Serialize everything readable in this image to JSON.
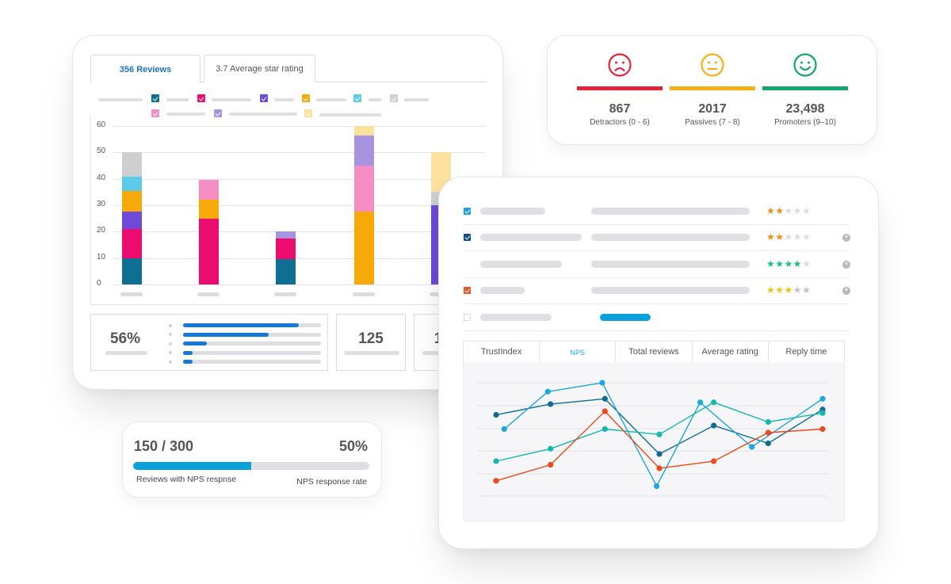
{
  "reviews_card": {
    "tabs": [
      {
        "label": "356 Reviews",
        "active": true
      },
      {
        "label": "3.7 Average star rating",
        "active": false
      }
    ],
    "legend_swatch_colors": [
      "#0e6f92",
      "#ec0b6f",
      "#6f4ad9",
      "#f7a90a",
      "#5ccbea",
      "#cfcfd2",
      "#f38dc2",
      "#a893e0",
      "#fbe19c"
    ],
    "stats": {
      "percent": "56%",
      "distribution_fill_pct": [
        84,
        62,
        17,
        7,
        7
      ],
      "count": "125",
      "partial_value": "1"
    }
  },
  "nps_summary": {
    "items": [
      {
        "icon": "sad-face-icon",
        "value": "867",
        "label": "Detractors (0 - 6)",
        "color": "#e5243b"
      },
      {
        "icon": "neutral-face-icon",
        "value": "2017",
        "label": "Passives (7 - 8)",
        "color": "#f5b015"
      },
      {
        "icon": "happy-face-icon",
        "value": "23,498",
        "label": "Promoters (9–10)",
        "color": "#12a86b"
      }
    ]
  },
  "response_rate": {
    "count": "150 / 300",
    "percent": "50%",
    "fill_pct": 50,
    "count_label": "Reviews with NPS respnse",
    "percent_label": "NPS response rate"
  },
  "review_list": {
    "rows": [
      {
        "checkbox": "checked",
        "checkbox_color": "#1fa3e0",
        "stars": 2,
        "star_color": "#f28a1c",
        "removable": false
      },
      {
        "checkbox": "checked",
        "checkbox_color": "#0f4e86",
        "stars": 2,
        "star_color": "#f28a1c",
        "removable": true
      },
      {
        "checkbox": "none",
        "checkbox_color": "",
        "stars": 4,
        "star_color": "#15c08a",
        "removable": true
      },
      {
        "checkbox": "checked",
        "checkbox_color": "#e4562a",
        "stars": 3,
        "star_color": "#f5c116",
        "removable": true
      },
      {
        "checkbox": "empty",
        "checkbox_color": "",
        "stars": 0,
        "star_color": "",
        "removable": false
      }
    ],
    "chart_tabs": [
      {
        "label": "TrustIndex",
        "active": false
      },
      {
        "label": "NPS",
        "active": true
      },
      {
        "label": "Total reviews",
        "active": false
      },
      {
        "label": "Average rating",
        "active": false
      },
      {
        "label": "Reply time",
        "active": false
      }
    ]
  },
  "chart_data": [
    {
      "type": "bar",
      "stacked": true,
      "title": "356 Reviews",
      "xlabel": "",
      "ylabel": "",
      "ylim": [
        0,
        60
      ],
      "yticks": [
        0,
        10,
        20,
        30,
        40,
        50,
        60
      ],
      "categories": [
        "",
        "",
        "",
        "",
        ""
      ],
      "grid": true,
      "series": [
        {
          "name": "",
          "color": "#0e6f92",
          "values": [
            10,
            0,
            9.5,
            0,
            0
          ]
        },
        {
          "name": "",
          "color": "#ec0b6f",
          "values": [
            11,
            25,
            7.8,
            0,
            0
          ]
        },
        {
          "name": "",
          "color": "#6f4ad9",
          "values": [
            6.5,
            0,
            0,
            0,
            30
          ]
        },
        {
          "name": "",
          "color": "#f7a90a",
          "values": [
            8,
            7,
            0,
            27.5,
            0
          ]
        },
        {
          "name": "",
          "color": "#5ccbea",
          "values": [
            5.3,
            0,
            0,
            0,
            0
          ]
        },
        {
          "name": "",
          "color": "#cfcfd2",
          "values": [
            9.2,
            0,
            0,
            0,
            5
          ]
        },
        {
          "name": "",
          "color": "#f38dc2",
          "values": [
            0,
            7.5,
            0,
            17.5,
            0
          ]
        },
        {
          "name": "",
          "color": "#a893e0",
          "values": [
            0,
            0,
            2.7,
            11.5,
            0
          ]
        },
        {
          "name": "",
          "color": "#fbe19c",
          "values": [
            0,
            0,
            0,
            3.5,
            15
          ]
        }
      ]
    },
    {
      "type": "line",
      "title": "NPS",
      "xlabel": "",
      "ylabel": "",
      "grid": true,
      "gridlines": 6,
      "ylim": [
        0,
        100
      ],
      "series": [
        {
          "name": "",
          "color": "#0e6b93",
          "points": [
            [
              0,
              70
            ],
            [
              1,
              76
            ],
            [
              2,
              79
            ],
            [
              3,
              48
            ],
            [
              4,
              64
            ],
            [
              5,
              54
            ],
            [
              6,
              73
            ]
          ]
        },
        {
          "name": "",
          "color": "#1ba8e0",
          "points": [
            [
              0.15,
              62
            ],
            [
              0.95,
              83
            ],
            [
              1.95,
              88
            ],
            [
              2.95,
              30
            ],
            [
              3.75,
              77
            ],
            [
              4.7,
              52
            ],
            [
              6,
              79
            ]
          ]
        },
        {
          "name": "",
          "color": "#14b8ad",
          "points": [
            [
              0,
              44
            ],
            [
              1,
              51
            ],
            [
              2,
              62
            ],
            [
              3,
              59
            ],
            [
              4,
              77
            ],
            [
              5,
              66
            ],
            [
              6,
              71
            ]
          ]
        },
        {
          "name": "",
          "color": "#ec4a1a",
          "points": [
            [
              0,
              33
            ],
            [
              1,
              42
            ],
            [
              2,
              72
            ],
            [
              3,
              40
            ],
            [
              4,
              44
            ],
            [
              5,
              60
            ],
            [
              6,
              62
            ]
          ]
        }
      ]
    }
  ]
}
